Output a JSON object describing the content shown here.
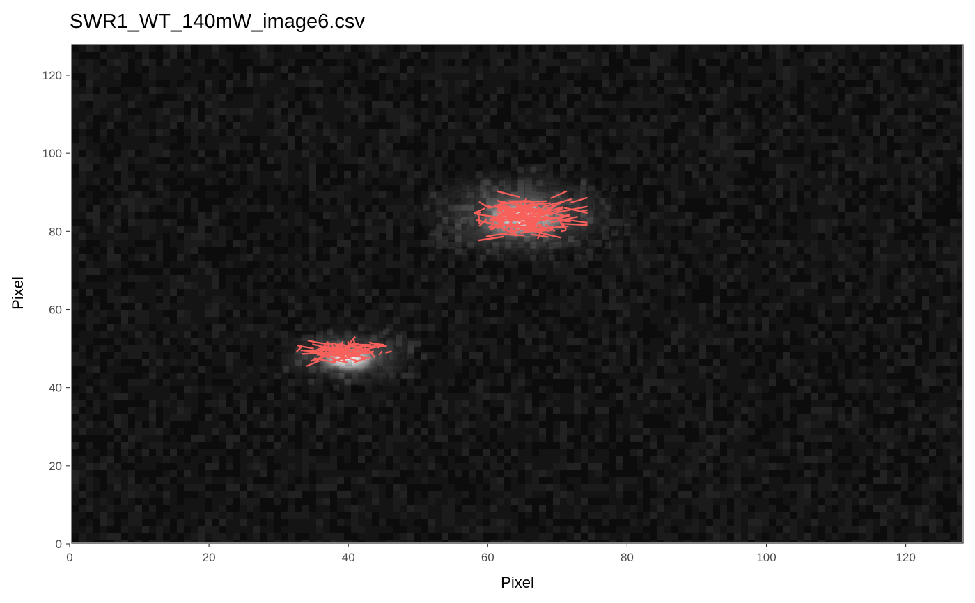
{
  "chart_data": {
    "type": "heatmap",
    "title": "SWR1_WT_140mW_image6.csv",
    "xlabel": "Pixel",
    "ylabel": "Pixel",
    "xlim": [
      0,
      128
    ],
    "ylim": [
      0,
      128
    ],
    "x_ticks": [
      0,
      20,
      40,
      60,
      80,
      100,
      120
    ],
    "y_ticks": [
      0,
      20,
      40,
      60,
      80,
      100,
      120
    ],
    "grid": false,
    "legend": "none",
    "colors": {
      "background_intensity": "#141414",
      "trace": "#f8605c",
      "panel_border": "#333333",
      "tick_text": "#4d4d4d"
    },
    "bright_spots": [
      {
        "x": 65,
        "y": 84,
        "sigma_x": 5.0,
        "sigma_y": 4.0,
        "peak": 0.75,
        "halo": 0.22
      },
      {
        "x": 40,
        "y": 48,
        "sigma_x": 3.5,
        "sigma_y": 2.6,
        "peak": 1.0,
        "halo": 0.2
      }
    ],
    "traces": [
      {
        "center": [
          65.5,
          84.0
        ],
        "spread": [
          4.2,
          3.0
        ],
        "segments": 170,
        "max_length": 8.0
      },
      {
        "center": [
          39.5,
          49.5
        ],
        "spread": [
          3.3,
          1.9
        ],
        "segments": 95,
        "max_length": 6.5
      }
    ]
  }
}
